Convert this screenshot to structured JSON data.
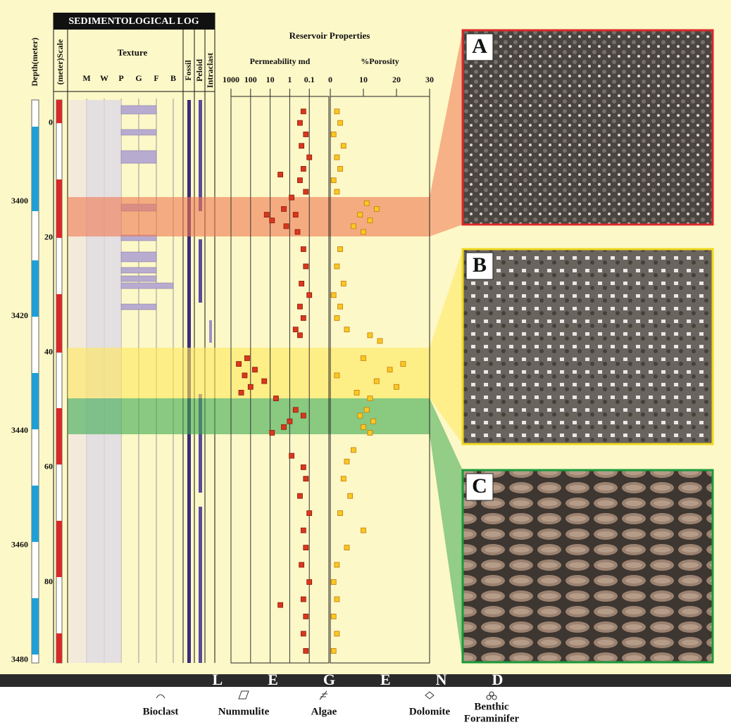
{
  "header": {
    "title": "SEDIMENTOLOGICAL LOG",
    "texture": "Texture",
    "texture_classes": [
      "M",
      "W",
      "P",
      "G",
      "F",
      "B"
    ],
    "components": [
      "Fossil",
      "Peloid",
      "Intraclast"
    ],
    "reservoir_title": "Reservoir Properties"
  },
  "depth_axis": {
    "label": "Depth(meter)",
    "ylim": [
      3382.3,
      3480.5
    ],
    "yticks": [
      3400,
      3420,
      3440,
      3460,
      3480
    ]
  },
  "scale_axis": {
    "label": "(meter)Scale",
    "ylim": [
      -4,
      94.1
    ],
    "yticks": [
      0,
      20,
      40,
      60,
      80
    ]
  },
  "chart_data": [
    {
      "type": "scatter",
      "title": "Permeability md",
      "log": true,
      "color": "#d9381e",
      "edge": "#8a1a0a",
      "xlim": [
        1000,
        0.01
      ],
      "xticks": [
        1000,
        100,
        10,
        1,
        0.1
      ],
      "ylim": [
        -4,
        94.1
      ],
      "grid": true,
      "x": [
        0.2,
        0.3,
        0.15,
        0.25,
        0.1,
        0.2,
        0.3,
        0.15,
        3,
        0.8,
        2,
        0.5,
        8,
        1.5,
        0.4,
        15,
        0.2,
        0.15,
        0.25,
        0.1,
        0.3,
        0.2,
        0.5,
        0.3,
        150,
        400,
        60,
        200,
        20,
        100,
        300,
        5,
        0.5,
        0.2,
        1,
        2,
        8,
        0.8,
        0.2,
        0.15,
        0.3,
        0.1,
        0.2,
        0.15,
        0.25,
        0.1,
        0.2,
        3,
        0.15,
        0.2,
        0.15
      ],
      "values": [
        -2,
        0,
        2,
        4,
        6,
        8,
        10,
        12,
        9,
        13,
        15,
        16,
        17,
        18,
        19,
        16,
        22,
        25,
        28,
        30,
        32,
        34,
        36,
        37,
        41,
        42,
        43,
        44,
        45,
        46,
        47,
        48,
        50,
        51,
        52,
        53,
        54,
        58,
        60,
        62,
        65,
        68,
        71,
        74,
        77,
        80,
        83,
        84,
        86,
        89,
        92
      ]
    },
    {
      "type": "scatter",
      "title": "%Porosity",
      "log": false,
      "color": "#f7c922",
      "edge": "#c9780c",
      "xlim": [
        0,
        30
      ],
      "xticks": [
        0,
        10,
        20,
        30
      ],
      "ylim": [
        -4,
        94.1
      ],
      "grid": false,
      "x": [
        2,
        3,
        1,
        4,
        2,
        3,
        1,
        2,
        11,
        14,
        9,
        12,
        7,
        10,
        3,
        2,
        4,
        1,
        3,
        2,
        5,
        12,
        15,
        10,
        22,
        18,
        2,
        14,
        20,
        8,
        12,
        11,
        9,
        13,
        10,
        12,
        7,
        5,
        4,
        6,
        3,
        10,
        5,
        2,
        1,
        2,
        1,
        2,
        1
      ],
      "values": [
        -2,
        0,
        2,
        4,
        6,
        8,
        10,
        12,
        14,
        15,
        16,
        17,
        18,
        19,
        22,
        25,
        28,
        30,
        32,
        34,
        36,
        37,
        38,
        41,
        42,
        43,
        44,
        45,
        46,
        47,
        48,
        50,
        51,
        52,
        53,
        54,
        57,
        59,
        62,
        65,
        68,
        71,
        74,
        77,
        80,
        83,
        86,
        89,
        92
      ]
    }
  ],
  "photos": [
    "A",
    "B",
    "C"
  ],
  "legend": {
    "title": "LEGEND",
    "items": [
      [
        "Bioclast"
      ],
      [
        "Nummulite"
      ],
      [
        "Algae"
      ],
      [
        "Dolomite"
      ],
      [
        "Benthic",
        "Foraminifer"
      ]
    ]
  }
}
